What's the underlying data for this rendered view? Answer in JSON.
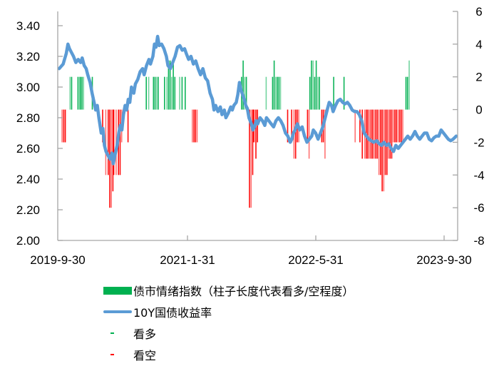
{
  "chart_data": {
    "type": "bar+line",
    "title": "",
    "x_range": [
      "2019-09-30",
      "2023-11-15"
    ],
    "x_tick_labels": [
      "2019-9-30",
      "2021-1-31",
      "2022-5-31",
      "2023-9-30"
    ],
    "left_axis": {
      "label": "",
      "ylim": [
        2.0,
        3.4
      ],
      "ticks": [
        "2.00",
        "2.20",
        "2.40",
        "2.60",
        "2.80",
        "3.00",
        "3.20",
        "3.40"
      ]
    },
    "right_axis": {
      "label": "",
      "ylim": [
        -8,
        6
      ],
      "ticks": [
        "6",
        "4",
        "2",
        "0",
        "-2",
        "-4",
        "-6",
        "-8"
      ]
    },
    "legend": [
      {
        "label": "债市情绪指数（柱子长度代表看多/空程度）",
        "kind": "bar",
        "color": "#00b050"
      },
      {
        "label": "10Y国债收益率",
        "kind": "line",
        "color": "#5b9bd5"
      },
      {
        "label": "看多",
        "kind": "dash",
        "color": "#00b050"
      },
      {
        "label": "看空",
        "kind": "dash",
        "color": "#ff0000"
      }
    ],
    "series": [
      {
        "name": "10Y国债收益率",
        "axis": "left",
        "type": "line",
        "color": "#5b9bd5",
        "points_t_value": [
          [
            0.0,
            3.12
          ],
          [
            0.01,
            3.15
          ],
          [
            0.018,
            3.22
          ],
          [
            0.022,
            3.28
          ],
          [
            0.026,
            3.25
          ],
          [
            0.03,
            3.23
          ],
          [
            0.036,
            3.2
          ],
          [
            0.042,
            3.16
          ],
          [
            0.048,
            3.18
          ],
          [
            0.054,
            3.16
          ],
          [
            0.058,
            3.19
          ],
          [
            0.063,
            3.14
          ],
          [
            0.068,
            3.12
          ],
          [
            0.072,
            3.08
          ],
          [
            0.078,
            3.03
          ],
          [
            0.083,
            2.96
          ],
          [
            0.088,
            2.9
          ],
          [
            0.092,
            2.85
          ],
          [
            0.096,
            2.88
          ],
          [
            0.1,
            2.8
          ],
          [
            0.106,
            2.7
          ],
          [
            0.11,
            2.73
          ],
          [
            0.114,
            2.62
          ],
          [
            0.118,
            2.58
          ],
          [
            0.124,
            2.55
          ],
          [
            0.128,
            2.53
          ],
          [
            0.133,
            2.57
          ],
          [
            0.136,
            2.5
          ],
          [
            0.14,
            2.55
          ],
          [
            0.146,
            2.62
          ],
          [
            0.15,
            2.7
          ],
          [
            0.154,
            2.75
          ],
          [
            0.158,
            2.72
          ],
          [
            0.162,
            2.82
          ],
          [
            0.166,
            2.88
          ],
          [
            0.17,
            2.85
          ],
          [
            0.174,
            2.92
          ],
          [
            0.178,
            2.9
          ],
          [
            0.182,
            3.0
          ],
          [
            0.188,
            2.96
          ],
          [
            0.192,
            3.02
          ],
          [
            0.198,
            3.05
          ],
          [
            0.204,
            3.1
          ],
          [
            0.21,
            3.12
          ],
          [
            0.214,
            3.08
          ],
          [
            0.22,
            3.14
          ],
          [
            0.226,
            3.18
          ],
          [
            0.23,
            3.15
          ],
          [
            0.236,
            3.2
          ],
          [
            0.24,
            3.28
          ],
          [
            0.244,
            3.26
          ],
          [
            0.248,
            3.33
          ],
          [
            0.252,
            3.27
          ],
          [
            0.258,
            3.28
          ],
          [
            0.264,
            3.25
          ],
          [
            0.27,
            3.2
          ],
          [
            0.274,
            3.14
          ],
          [
            0.28,
            3.12
          ],
          [
            0.286,
            3.16
          ],
          [
            0.292,
            3.2
          ],
          [
            0.298,
            3.26
          ],
          [
            0.304,
            3.27
          ],
          [
            0.31,
            3.24
          ],
          [
            0.316,
            3.25
          ],
          [
            0.32,
            3.22
          ],
          [
            0.326,
            3.18
          ],
          [
            0.332,
            3.2
          ],
          [
            0.338,
            3.15
          ],
          [
            0.344,
            3.17
          ],
          [
            0.35,
            3.12
          ],
          [
            0.356,
            3.08
          ],
          [
            0.362,
            3.12
          ],
          [
            0.368,
            3.06
          ],
          [
            0.374,
            3.04
          ],
          [
            0.38,
            2.96
          ],
          [
            0.386,
            2.92
          ],
          [
            0.39,
            2.85
          ],
          [
            0.394,
            2.88
          ],
          [
            0.4,
            2.84
          ],
          [
            0.406,
            2.87
          ],
          [
            0.41,
            2.82
          ],
          [
            0.416,
            2.85
          ],
          [
            0.42,
            2.8
          ],
          [
            0.426,
            2.83
          ],
          [
            0.432,
            2.87
          ],
          [
            0.436,
            2.85
          ],
          [
            0.44,
            2.88
          ],
          [
            0.446,
            2.9
          ],
          [
            0.45,
            2.95
          ],
          [
            0.454,
            3.03
          ],
          [
            0.458,
            2.98
          ],
          [
            0.462,
            2.95
          ],
          [
            0.466,
            2.92
          ],
          [
            0.47,
            2.88
          ],
          [
            0.474,
            2.86
          ],
          [
            0.478,
            2.8
          ],
          [
            0.484,
            2.76
          ],
          [
            0.488,
            2.72
          ],
          [
            0.492,
            2.74
          ],
          [
            0.496,
            2.78
          ],
          [
            0.5,
            2.76
          ],
          [
            0.506,
            2.8
          ],
          [
            0.512,
            2.78
          ],
          [
            0.518,
            2.75
          ],
          [
            0.522,
            2.8
          ],
          [
            0.528,
            2.78
          ],
          [
            0.534,
            2.76
          ],
          [
            0.54,
            2.74
          ],
          [
            0.546,
            2.78
          ],
          [
            0.552,
            2.8
          ],
          [
            0.558,
            2.78
          ],
          [
            0.564,
            2.75
          ],
          [
            0.57,
            2.7
          ],
          [
            0.576,
            2.68
          ],
          [
            0.582,
            2.64
          ],
          [
            0.586,
            2.66
          ],
          [
            0.59,
            2.7
          ],
          [
            0.594,
            2.72
          ],
          [
            0.6,
            2.76
          ],
          [
            0.606,
            2.72
          ],
          [
            0.612,
            2.74
          ],
          [
            0.618,
            2.68
          ],
          [
            0.624,
            2.64
          ],
          [
            0.63,
            2.66
          ],
          [
            0.636,
            2.68
          ],
          [
            0.64,
            2.72
          ],
          [
            0.646,
            2.7
          ],
          [
            0.652,
            2.66
          ],
          [
            0.658,
            2.7
          ],
          [
            0.664,
            2.74
          ],
          [
            0.67,
            2.8
          ],
          [
            0.676,
            2.86
          ],
          [
            0.68,
            2.9
          ],
          [
            0.686,
            2.88
          ],
          [
            0.69,
            2.84
          ],
          [
            0.696,
            2.88
          ],
          [
            0.702,
            2.91
          ],
          [
            0.708,
            2.92
          ],
          [
            0.714,
            2.9
          ],
          [
            0.72,
            2.89
          ],
          [
            0.726,
            2.9
          ],
          [
            0.732,
            2.88
          ],
          [
            0.738,
            2.85
          ],
          [
            0.744,
            2.84
          ],
          [
            0.75,
            2.84
          ],
          [
            0.756,
            2.82
          ],
          [
            0.762,
            2.78
          ],
          [
            0.768,
            2.7
          ],
          [
            0.774,
            2.68
          ],
          [
            0.78,
            2.66
          ],
          [
            0.786,
            2.65
          ],
          [
            0.792,
            2.64
          ],
          [
            0.8,
            2.65
          ],
          [
            0.806,
            2.63
          ],
          [
            0.812,
            2.62
          ],
          [
            0.818,
            2.64
          ],
          [
            0.824,
            2.62
          ],
          [
            0.83,
            2.63
          ],
          [
            0.836,
            2.6
          ],
          [
            0.842,
            2.58
          ],
          [
            0.848,
            2.62
          ],
          [
            0.854,
            2.6
          ],
          [
            0.86,
            2.62
          ],
          [
            0.866,
            2.64
          ],
          [
            0.872,
            2.66
          ],
          [
            0.878,
            2.68
          ],
          [
            0.884,
            2.66
          ],
          [
            0.89,
            2.68
          ],
          [
            0.896,
            2.71
          ],
          [
            0.902,
            2.68
          ],
          [
            0.908,
            2.66
          ],
          [
            0.914,
            2.68
          ],
          [
            0.92,
            2.7
          ],
          [
            0.926,
            2.7
          ],
          [
            0.932,
            2.66
          ],
          [
            0.938,
            2.65
          ],
          [
            0.944,
            2.67
          ],
          [
            0.95,
            2.68
          ],
          [
            0.956,
            2.68
          ],
          [
            0.962,
            2.72
          ],
          [
            0.968,
            2.7
          ],
          [
            0.974,
            2.68
          ],
          [
            0.98,
            2.66
          ],
          [
            0.986,
            2.65
          ],
          [
            0.992,
            2.66
          ],
          [
            1.0,
            2.68
          ]
        ]
      },
      {
        "name": "债市情绪指数",
        "axis": "right",
        "type": "bar",
        "positive_color": "#00b050",
        "negative_color": "#ff0000",
        "bars_t_value": [
          [
            0.006,
            -2
          ],
          [
            0.01,
            -2
          ],
          [
            0.014,
            -2
          ],
          [
            0.026,
            2
          ],
          [
            0.03,
            2
          ],
          [
            0.046,
            2
          ],
          [
            0.05,
            2
          ],
          [
            0.052,
            2
          ],
          [
            0.056,
            2
          ],
          [
            0.06,
            2
          ],
          [
            0.082,
            2
          ],
          [
            0.108,
            -2
          ],
          [
            0.116,
            -4
          ],
          [
            0.122,
            -4
          ],
          [
            0.126,
            -6
          ],
          [
            0.13,
            -6
          ],
          [
            0.134,
            -5
          ],
          [
            0.136,
            -4
          ],
          [
            0.142,
            -4
          ],
          [
            0.148,
            -4
          ],
          [
            0.152,
            -4
          ],
          [
            0.156,
            -2
          ],
          [
            0.172,
            -2
          ],
          [
            0.218,
            2
          ],
          [
            0.224,
            2
          ],
          [
            0.236,
            2
          ],
          [
            0.24,
            2
          ],
          [
            0.244,
            2
          ],
          [
            0.248,
            2
          ],
          [
            0.264,
            2
          ],
          [
            0.27,
            2
          ],
          [
            0.274,
            3
          ],
          [
            0.278,
            3
          ],
          [
            0.282,
            2
          ],
          [
            0.286,
            3
          ],
          [
            0.29,
            2
          ],
          [
            0.302,
            2
          ],
          [
            0.308,
            2
          ],
          [
            0.316,
            2
          ],
          [
            0.334,
            -2
          ],
          [
            0.338,
            -2
          ],
          [
            0.342,
            -2
          ],
          [
            0.346,
            -2
          ],
          [
            0.462,
            3
          ],
          [
            0.458,
            2
          ],
          [
            0.466,
            2
          ],
          [
            0.47,
            2
          ],
          [
            0.478,
            -6
          ],
          [
            0.482,
            -6
          ],
          [
            0.486,
            -4
          ],
          [
            0.488,
            -2
          ],
          [
            0.49,
            -2
          ],
          [
            0.494,
            -3
          ],
          [
            0.498,
            -2
          ],
          [
            0.52,
            2
          ],
          [
            0.536,
            2
          ],
          [
            0.54,
            3
          ],
          [
            0.544,
            2
          ],
          [
            0.548,
            2
          ],
          [
            0.552,
            2
          ],
          [
            0.556,
            2
          ],
          [
            0.574,
            -2
          ],
          [
            0.584,
            -2
          ],
          [
            0.59,
            -3
          ],
          [
            0.594,
            -3
          ],
          [
            0.598,
            -2
          ],
          [
            0.602,
            -2
          ],
          [
            0.63,
            2
          ],
          [
            0.634,
            3
          ],
          [
            0.638,
            3
          ],
          [
            0.642,
            2
          ],
          [
            0.646,
            3
          ],
          [
            0.65,
            2
          ],
          [
            0.654,
            2
          ],
          [
            0.624,
            -2
          ],
          [
            0.628,
            -3
          ],
          [
            0.66,
            -2
          ],
          [
            0.664,
            -2
          ],
          [
            0.668,
            -3
          ],
          [
            0.69,
            2
          ],
          [
            0.716,
            2
          ],
          [
            0.744,
            -2
          ],
          [
            0.756,
            -2
          ],
          [
            0.762,
            -3
          ],
          [
            0.768,
            -3
          ],
          [
            0.772,
            -3
          ],
          [
            0.776,
            -3
          ],
          [
            0.78,
            -3
          ],
          [
            0.784,
            -3
          ],
          [
            0.788,
            -3
          ],
          [
            0.792,
            -3
          ],
          [
            0.796,
            -3
          ],
          [
            0.8,
            -3
          ],
          [
            0.804,
            -4
          ],
          [
            0.808,
            -4
          ],
          [
            0.812,
            -5
          ],
          [
            0.816,
            -5
          ],
          [
            0.82,
            -4
          ],
          [
            0.824,
            -4
          ],
          [
            0.828,
            -3
          ],
          [
            0.832,
            -3
          ],
          [
            0.836,
            -3
          ],
          [
            0.84,
            -2
          ],
          [
            0.844,
            -2
          ],
          [
            0.848,
            -2
          ],
          [
            0.852,
            -2
          ],
          [
            0.856,
            -2
          ],
          [
            0.86,
            -2
          ],
          [
            0.864,
            -2
          ],
          [
            0.872,
            2
          ],
          [
            0.876,
            2
          ],
          [
            0.88,
            3
          ]
        ]
      }
    ],
    "grid": false
  },
  "ui": {
    "legend_labels": [
      "债市情绪指数（柱子长度代表看多/空程度）",
      "10Y国债收益率",
      "看多",
      "看空"
    ]
  }
}
